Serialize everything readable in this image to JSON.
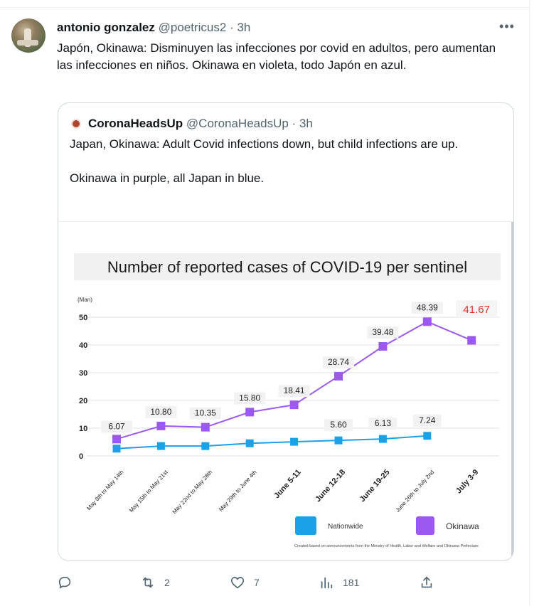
{
  "tweet": {
    "name": "antonio gonzalez",
    "handle": "@poetricus2",
    "separator": "·",
    "time": "3h",
    "more": "•••",
    "text": "Japón, Okinawa: Disminuyen las infecciones por covid en adultos, pero aumentan las infecciones en niños. Okinawa en violeta, todo Japón en azul."
  },
  "quote": {
    "name": "CoronaHeadsUp",
    "handle": "@CoronaHeadsUp",
    "separator": "·",
    "time": "3h",
    "text": "Japan, Okinawa: Adult Covid infections down, but child infections are up.\n\nOkinawa in purple, all Japan in blue."
  },
  "actions": {
    "reply_count": "",
    "retweet_count": "2",
    "like_count": "7",
    "views_count": "181"
  },
  "colors": {
    "okinawa": "#9b59f0",
    "nationwide": "#1ba1e8",
    "highlight": "#e8302a"
  },
  "chart_data": {
    "type": "line",
    "title": "Number of reported cases of COVID-19 per sentinel",
    "yunit": "(Man)",
    "ylim": [
      0,
      50
    ],
    "yticks": [
      0,
      10,
      20,
      30,
      40,
      50
    ],
    "categories": [
      "May 8th to May 14th",
      "May 15th to May 21st",
      "May 22nd to May 28th",
      "May 29th to June 4th",
      "June 5-11",
      "June 12-18",
      "June 19-25",
      "June 26th to July 2nd",
      "July 3-9"
    ],
    "series": [
      {
        "name": "Okinawa",
        "color": "#9b59f0",
        "values": [
          6.07,
          10.8,
          10.35,
          15.8,
          18.41,
          28.74,
          39.48,
          48.39,
          41.67
        ],
        "labels": [
          "6.07",
          "10.80",
          "10.35",
          "15.80",
          "18.41",
          "28.74",
          "39.48",
          "48.39",
          "41.67"
        ]
      },
      {
        "name": "Nationwide",
        "color": "#1ba1e8",
        "values": [
          2.63,
          3.56,
          3.55,
          4.55,
          5.1,
          5.6,
          6.13,
          7.24,
          null
        ],
        "labels": [
          "",
          "",
          "",
          "",
          "",
          "5.60",
          "6.13",
          "7.24",
          ""
        ]
      }
    ],
    "legend": [
      "Nationwide",
      "Okinawa"
    ],
    "legend_position": "bottom-right",
    "source_note": "Created based on announcements from the Ministry of Health, Labor and Welfare and Okinawa Prefecture"
  }
}
